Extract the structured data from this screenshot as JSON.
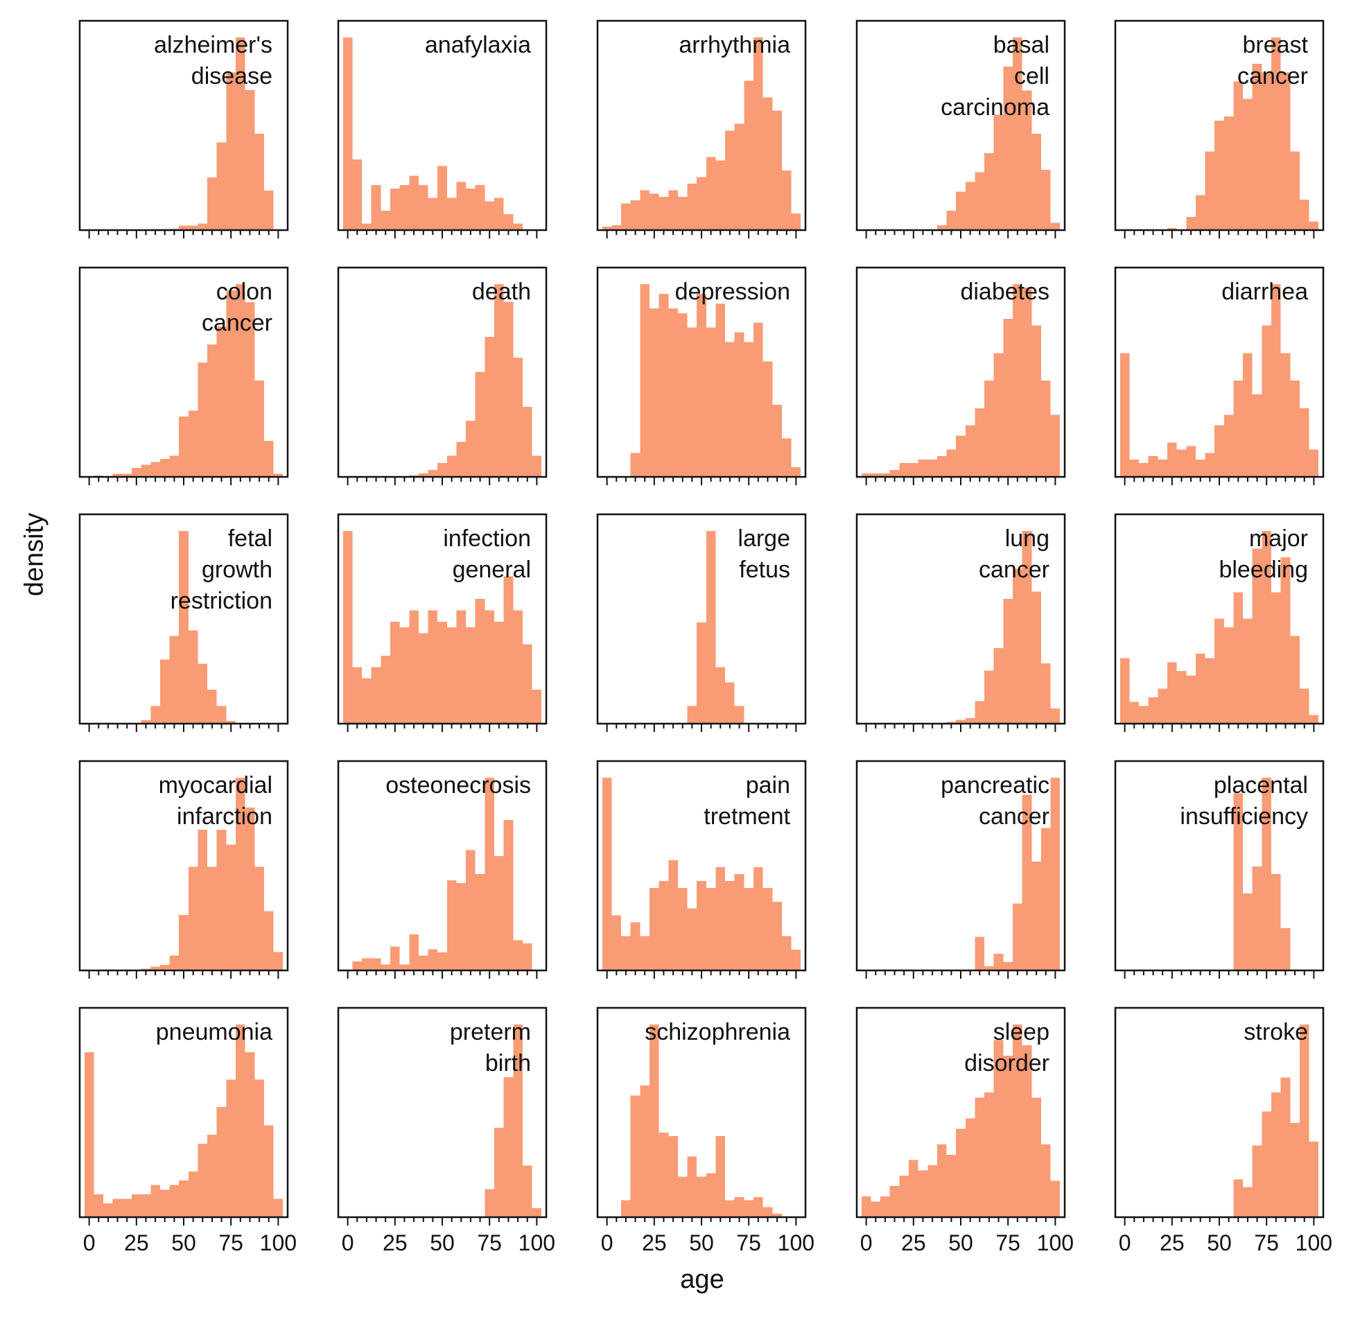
{
  "chart_data": {
    "type": "bar",
    "layout": "small-multiples histogram grid, 5 rows x 5 columns",
    "xlabel": "age",
    "ylabel": "density",
    "xlim": [
      -5,
      105
    ],
    "xticks": [
      0,
      25,
      50,
      75,
      100
    ],
    "xtick_labels": [
      "0",
      "25",
      "50",
      "75",
      "100"
    ],
    "bin_width": 5,
    "bin_centers": [
      0,
      5,
      10,
      15,
      20,
      25,
      30,
      35,
      40,
      45,
      50,
      55,
      60,
      65,
      70,
      75,
      80,
      85,
      90,
      95,
      100
    ],
    "y_ticks_shown": false,
    "bar_color": "#F99B75",
    "panels": [
      {
        "title": "alzheimer's disease",
        "title_lines": [
          "alzheimer's",
          "disease"
        ],
        "values": [
          0,
          0,
          0,
          0,
          0,
          0,
          0,
          0.2,
          0.2,
          0.3,
          1,
          1,
          1.5,
          12,
          20,
          36,
          44,
          32,
          22,
          9,
          0
        ]
      },
      {
        "title": "anafylaxia",
        "title_lines": [
          "anafylaxia"
        ],
        "values": [
          60,
          22,
          2,
          14,
          6,
          13,
          14,
          17,
          14,
          10,
          20,
          10,
          15,
          13,
          14,
          9,
          10,
          5,
          2,
          0,
          0
        ]
      },
      {
        "title": "arrhythmia",
        "title_lines": [
          "arrhythmia"
        ],
        "values": [
          1,
          1.5,
          8,
          9,
          12,
          11,
          10,
          12,
          10,
          14,
          16,
          22,
          21,
          30,
          32,
          45,
          58,
          40,
          36,
          18,
          5
        ]
      },
      {
        "title": "basal cell carcinoma",
        "title_lines": [
          "basal",
          "cell",
          "carcinoma"
        ],
        "values": [
          0,
          0,
          0,
          0,
          0,
          0,
          0,
          0,
          2,
          8,
          16,
          20,
          24,
          32,
          48,
          68,
          80,
          58,
          40,
          25,
          3
        ]
      },
      {
        "title": "breast cancer",
        "title_lines": [
          "breast",
          "cancer"
        ],
        "values": [
          0,
          0,
          0,
          0,
          0,
          0.5,
          0,
          3,
          8,
          18,
          25,
          26,
          34,
          30,
          38,
          36,
          44,
          36,
          18,
          7,
          2
        ]
      },
      {
        "title": "colon cancer",
        "title_lines": [
          "colon",
          "cancer"
        ],
        "values": [
          0,
          0.5,
          0,
          1,
          1,
          3,
          4,
          5,
          6,
          7,
          20,
          22,
          38,
          44,
          50,
          62,
          64,
          58,
          32,
          12,
          1
        ]
      },
      {
        "title": "death",
        "title_lines": [
          "death"
        ],
        "values": [
          0,
          0,
          0,
          0,
          0,
          0,
          0,
          0.5,
          1,
          2,
          4,
          6,
          10,
          16,
          30,
          40,
          55,
          50,
          34,
          20,
          6
        ]
      },
      {
        "title": "depression",
        "title_lines": [
          "depression"
        ],
        "values": [
          0,
          0,
          0,
          5,
          40,
          35,
          38,
          35,
          34,
          31,
          38,
          31,
          36,
          28,
          30,
          28,
          32,
          24,
          15,
          8,
          2
        ]
      },
      {
        "title": "diabetes",
        "title_lines": [
          "diabetes"
        ],
        "values": [
          1,
          1,
          1,
          2,
          4,
          4,
          5,
          5,
          6,
          8,
          12,
          15,
          20,
          28,
          36,
          46,
          56,
          55,
          44,
          28,
          18
        ]
      },
      {
        "title": "diarrhea",
        "title_lines": [
          "diarrhea"
        ],
        "values": [
          36,
          5,
          4,
          6,
          5,
          10,
          8,
          9,
          5,
          7,
          15,
          18,
          28,
          36,
          24,
          44,
          56,
          36,
          28,
          20,
          8
        ]
      },
      {
        "title": "fetal growth restriction",
        "title_lines": [
          "fetal",
          "growth",
          "restriction"
        ],
        "values": [
          0,
          0,
          0,
          0,
          0,
          0,
          6,
          30,
          110,
          150,
          330,
          160,
          103,
          58,
          30,
          5,
          1,
          0,
          0,
          0,
          0
        ]
      },
      {
        "title": "infection general",
        "title_lines": [
          "infection",
          "general"
        ],
        "values": [
          34,
          10,
          8,
          10,
          12,
          18,
          17,
          20,
          16,
          20,
          18,
          17,
          20,
          17,
          22,
          20,
          18,
          26,
          20,
          14,
          6
        ]
      },
      {
        "title": "large fetus",
        "title_lines": [
          "large",
          "fetus"
        ],
        "values": [
          0,
          0,
          0,
          0,
          0,
          0,
          0,
          0,
          0,
          22,
          125,
          238,
          70,
          51,
          22,
          0,
          0,
          0,
          0,
          0,
          0
        ]
      },
      {
        "title": "lung cancer",
        "title_lines": [
          "lung",
          "cancer"
        ],
        "values": [
          0,
          0,
          0,
          0,
          0,
          0,
          0,
          0,
          0,
          1,
          2,
          3,
          12,
          28,
          40,
          66,
          82,
          102,
          70,
          32,
          8
        ]
      },
      {
        "title": "major bleeding",
        "title_lines": [
          "major",
          "bleeding"
        ],
        "values": [
          15,
          5,
          4,
          6,
          8,
          14,
          12,
          11,
          16,
          15,
          24,
          22,
          30,
          24,
          40,
          44,
          30,
          38,
          20,
          8,
          2
        ]
      },
      {
        "title": "myocardial infarction",
        "title_lines": [
          "myocardial",
          "infarction"
        ],
        "values": [
          0,
          0,
          0,
          0,
          0,
          0,
          0.5,
          1,
          1.5,
          4,
          15,
          28,
          38,
          28,
          38,
          34,
          52,
          44,
          28,
          16,
          5
        ]
      },
      {
        "title": "osteonecrosis",
        "title_lines": [
          "osteonecrosis"
        ],
        "values": [
          0,
          3,
          4,
          4,
          2,
          8,
          2,
          12,
          5,
          7,
          6,
          30,
          29,
          40,
          32,
          64,
          38,
          50,
          10,
          9,
          0
        ]
      },
      {
        "title": "pain tretment",
        "title_lines": [
          "pain",
          "tretment"
        ],
        "values": [
          28,
          8,
          5,
          7,
          5,
          12,
          13,
          16,
          12,
          9,
          13,
          12,
          15,
          13,
          14,
          12,
          15,
          12,
          10,
          5,
          3
        ]
      },
      {
        "title": "pancreatic cancer",
        "title_lines": [
          "pancreatic",
          "cancer"
        ],
        "values": [
          0,
          0,
          0,
          0,
          0,
          0,
          0,
          0,
          0,
          0,
          0,
          0,
          8,
          1,
          4,
          2,
          16,
          42,
          26,
          34,
          46
        ]
      },
      {
        "title": "placental insufficiency",
        "title_lines": [
          "placental",
          "insufficiency"
        ],
        "values": [
          0,
          0,
          0,
          0,
          0,
          0,
          0,
          0,
          0,
          0,
          0,
          0,
          46,
          20,
          27,
          50,
          25,
          11,
          0,
          0,
          0
        ]
      },
      {
        "title": "pneumonia",
        "title_lines": [
          "pneumonia"
        ],
        "values": [
          36,
          5,
          3,
          4,
          4,
          5,
          5,
          7,
          6,
          7,
          8,
          10,
          16,
          18,
          24,
          30,
          42,
          36,
          30,
          20,
          4
        ]
      },
      {
        "title": "preterm birth",
        "title_lines": [
          "preterm",
          "birth"
        ],
        "values": [
          0,
          0,
          0,
          0,
          0,
          0,
          0,
          0,
          0,
          0,
          0,
          0,
          0,
          0,
          0,
          25,
          80,
          125,
          172,
          46,
          8
        ]
      },
      {
        "title": "schizophrenia",
        "title_lines": [
          "schizophrenia"
        ],
        "values": [
          0,
          0,
          5,
          36,
          39,
          57,
          25,
          24,
          12,
          18,
          12,
          13,
          24,
          5,
          6,
          5,
          6,
          3,
          1,
          0,
          0
        ]
      },
      {
        "title": "sleep disorder",
        "title_lines": [
          "sleep",
          "disorder"
        ],
        "values": [
          4,
          3,
          4,
          6,
          8,
          11,
          9,
          10,
          14,
          12,
          17,
          19,
          23,
          24,
          34,
          31,
          37,
          33,
          23,
          14,
          7
        ]
      },
      {
        "title": "stroke",
        "title_lines": [
          "stroke"
        ],
        "values": [
          0,
          0,
          0,
          0,
          0,
          0,
          0,
          0,
          0,
          0,
          0,
          0,
          10,
          8,
          19,
          28,
          33,
          37,
          25,
          51,
          20
        ]
      }
    ]
  }
}
